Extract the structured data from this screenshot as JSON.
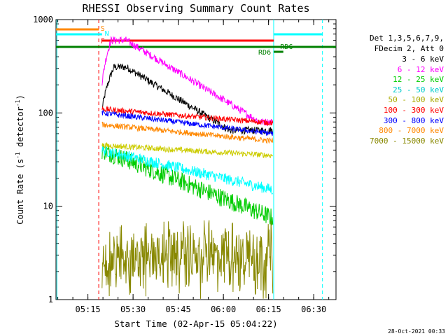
{
  "chart_data": {
    "type": "line",
    "title": "RHESSI Observing Summary Count Rates",
    "xlabel": "Start Time (02-Apr-15 05:04:22)",
    "ylabel_prefix": "Count Rate (s",
    "ylabel_exp": "-1",
    "ylabel_suffix": " detector",
    "ylabel_end": ")",
    "y_scale": "log",
    "ylim": [
      1,
      1000
    ],
    "xlim_minutes": [
      0,
      93
    ],
    "x_tick_labels": [
      "05:15",
      "05:30",
      "05:45",
      "06:00",
      "06:15",
      "06:30"
    ],
    "x_tick_minutes": [
      10.6,
      25.6,
      40.6,
      55.6,
      70.6,
      85.6
    ],
    "y_tick_labels": [
      "1",
      "10",
      "100",
      "1000"
    ],
    "y_tick_values": [
      1,
      10,
      100,
      1000
    ],
    "legend_header": [
      "Det 1,3,5,6,7,9,",
      "FDecim 2, Att 0"
    ],
    "series": [
      {
        "name": "3 - 6 keV",
        "color": "#000000",
        "start": 300,
        "peak": 310,
        "end": 65,
        "noise": 0.04
      },
      {
        "name": "6 - 12 keV",
        "color": "#ff00ff",
        "start": 500,
        "peak": 600,
        "end": 80,
        "noise": 0.04
      },
      {
        "name": "12 - 25 keV",
        "color": "#00cc00",
        "start": 40,
        "peak": 40,
        "end": 7.5,
        "noise": 0.1
      },
      {
        "name": "25 - 50 keV",
        "color": "#00ffff",
        "start": 40,
        "peak": 40,
        "end": 15,
        "noise": 0.06
      },
      {
        "name": "50 - 100 keV",
        "color": "#cccc00",
        "start": 45,
        "peak": 42,
        "end": 35,
        "noise": 0.03
      },
      {
        "name": "100 - 300 keV",
        "color": "#ff0000",
        "start": 110,
        "peak": 105,
        "end": 78,
        "noise": 0.03
      },
      {
        "name": "300 - 800 keV",
        "color": "#0000ff",
        "start": 100,
        "peak": 88,
        "end": 60,
        "noise": 0.03
      },
      {
        "name": "800 - 7000 keV",
        "color": "#ff8800",
        "start": 75,
        "peak": 70,
        "end": 50,
        "noise": 0.03
      },
      {
        "name": "7000 - 15000 keV",
        "color": "#888800",
        "start": 3,
        "peak": 3,
        "end": 3,
        "noise": 0.25
      }
    ],
    "flags": [
      {
        "label": "S",
        "color": "#ff8800"
      },
      {
        "label": "N",
        "color": "#00ffff"
      },
      {
        "label": "F",
        "color": "#ff0000"
      },
      {
        "label": "RD6",
        "color": "#008000"
      },
      {
        "label": "RD6",
        "color": "#008000"
      }
    ],
    "timestamp": "28-Oct-2021 00:33"
  }
}
